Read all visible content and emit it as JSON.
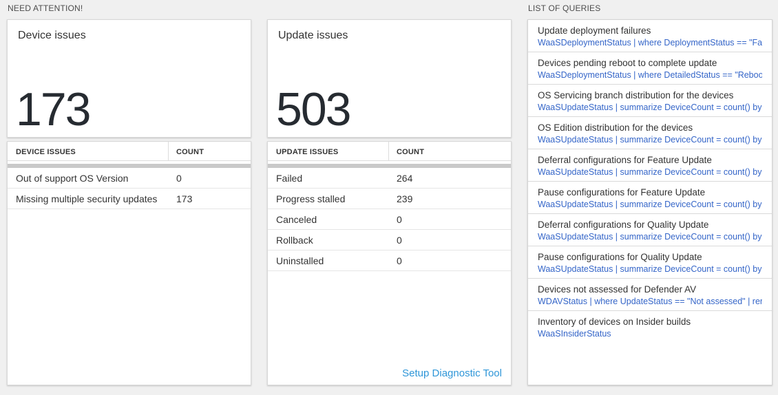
{
  "sections": {
    "need_attention": {
      "label": "NEED ATTENTION!"
    },
    "list_of_queries": {
      "label": "LIST OF QUERIES"
    }
  },
  "device_card": {
    "title": "Device issues",
    "count": "173"
  },
  "device_table": {
    "headers": [
      "DEVICE ISSUES",
      "COUNT"
    ],
    "rows": [
      {
        "label": "Out of support OS Version",
        "count": "0"
      },
      {
        "label": "Missing multiple security updates",
        "count": "173"
      }
    ]
  },
  "update_card": {
    "title": "Update issues",
    "count": "503"
  },
  "update_table": {
    "headers": [
      "UPDATE ISSUES",
      "COUNT"
    ],
    "rows": [
      {
        "label": "Failed",
        "count": "264"
      },
      {
        "label": "Progress stalled",
        "count": "239"
      },
      {
        "label": "Canceled",
        "count": "0"
      },
      {
        "label": "Rollback",
        "count": "0"
      },
      {
        "label": "Uninstalled",
        "count": "0"
      }
    ],
    "footer_link": "Setup Diagnostic Tool"
  },
  "queries": {
    "items": [
      {
        "title": "Update deployment failures",
        "query": "WaaSDeploymentStatus | where DeploymentStatus == \"Failed\" |..."
      },
      {
        "title": "Devices pending reboot to complete update",
        "query": "WaaSDeploymentStatus | where DetailedStatus == \"Reboot pend..."
      },
      {
        "title": "OS Servicing branch distribution for the devices",
        "query": "WaaSUpdateStatus | summarize DeviceCount = count() by OSSer..."
      },
      {
        "title": "OS Edition distribution for the devices",
        "query": "WaaSUpdateStatus | summarize DeviceCount = count() by OSEdit..."
      },
      {
        "title": "Deferral configurations for Feature Update",
        "query": "WaaSUpdateStatus | summarize DeviceCount = count() by Featur..."
      },
      {
        "title": "Pause configurations for Feature Update",
        "query": "WaaSUpdateStatus | summarize DeviceCount = count() by Featur..."
      },
      {
        "title": "Deferral configurations for Quality Update",
        "query": "WaaSUpdateStatus | summarize DeviceCount = count() by Qualit..."
      },
      {
        "title": "Pause configurations for Quality Update",
        "query": "WaaSUpdateStatus | summarize DeviceCount = count() by Qualit..."
      },
      {
        "title": "Devices not assessed for Defender AV",
        "query": "WDAVStatus | where UpdateStatus == \"Not assessed\" | render ta..."
      },
      {
        "title": "Inventory of devices on Insider builds",
        "query": "WaaSInsiderStatus"
      }
    ]
  },
  "colors": {
    "background": "#f0f0f0",
    "query_link_blue": "#3465c8",
    "action_link_blue": "#2e96d8",
    "big_number": "#262b31",
    "scrollbar_gray": "#c9c9c9"
  }
}
